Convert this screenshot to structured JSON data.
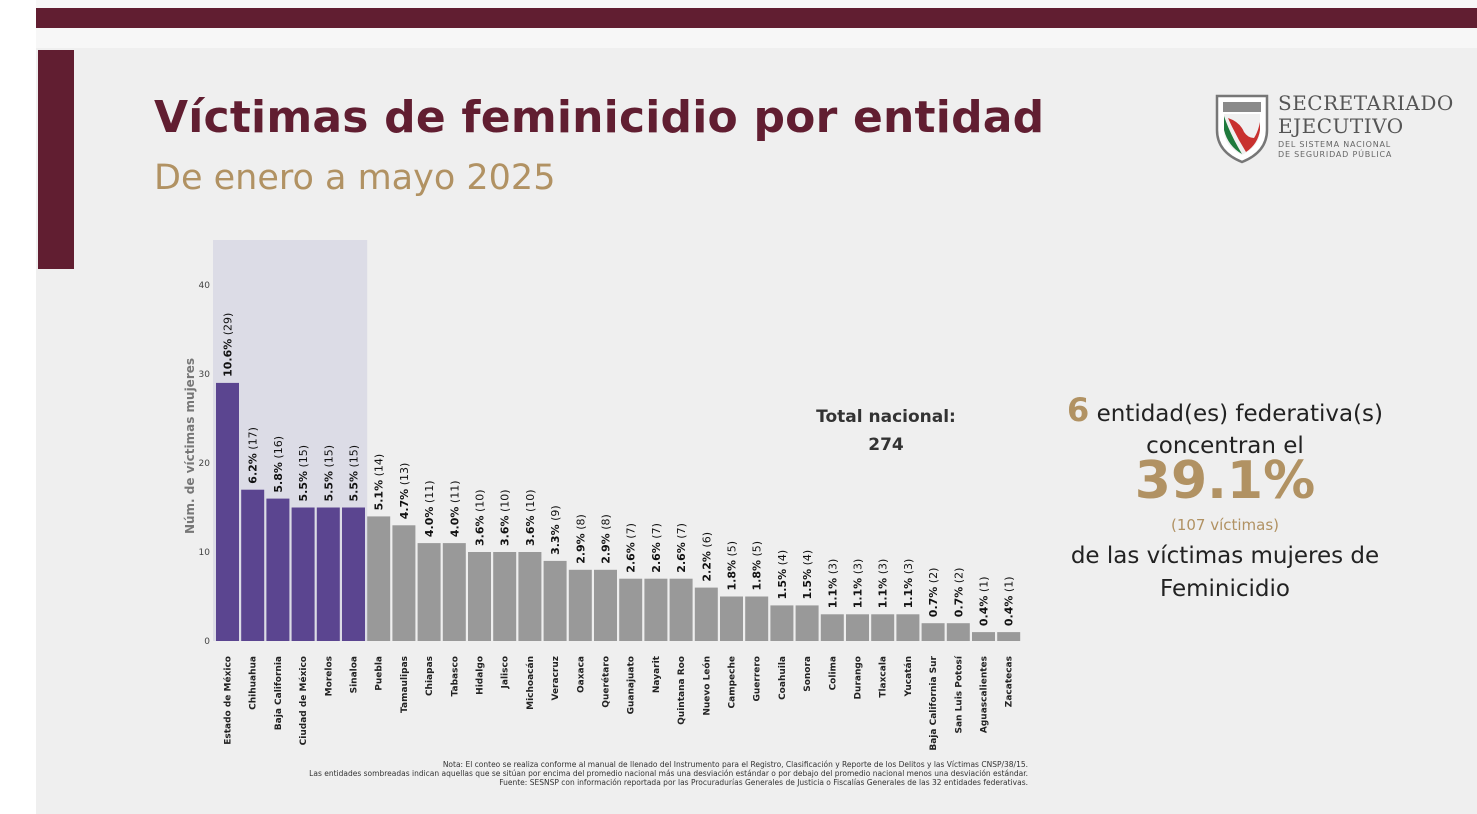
{
  "header": {
    "title": "Víctimas de feminicidio por entidad",
    "subtitle": "De enero a mayo 2025"
  },
  "logo": {
    "line1": "SECRETARIADO",
    "line2": "EJECUTIVO",
    "line3": "DEL SISTEMA NACIONAL",
    "line4": "DE SEGURIDAD PÚBLICA"
  },
  "total": {
    "label": "Total nacional:",
    "value": "274"
  },
  "stat": {
    "count": "6",
    "line1_rest": " entidad(es) federativa(s)",
    "line2": "concentran el",
    "percent": "39.1%",
    "victims": "(107 víctimas)",
    "line3": "de las víctimas mujeres de",
    "line4": "Feminicidio"
  },
  "notes": [
    "Nota: El conteo se realiza conforme al manual de llenado del Instrumento para el Registro, Clasificación y Reporte de los Delitos y las Víctimas CNSP/38/15.",
    "Las entidades sombreadas indican aquellas que se sitúan por encima del promedio nacional más una desviación estándar o por debajo del promedio nacional menos una desviación estándar.",
    "Fuente: SESNSP con información reportada por las Procuradurías Generales de Justicia o Fiscalías Generales de las 32 entidades federativas."
  ],
  "colors": {
    "highlight": "#5b4590",
    "normal": "#999999",
    "shade": "#dcdce6",
    "brand": "#611e31",
    "gold": "#b19263"
  },
  "chart_data": {
    "type": "bar",
    "title": "Víctimas de feminicidio por entidad",
    "xlabel": "",
    "ylabel": "Núm. de víctimas mujeres",
    "ylim": [
      0,
      45
    ],
    "yticks": [
      "0",
      "10",
      "20",
      "30",
      "40"
    ],
    "grid": false,
    "categories": [
      "Estado de México",
      "Chihuahua",
      "Baja California",
      "Ciudad de México",
      "Morelos",
      "Sinaloa",
      "Puebla",
      "Tamaulipas",
      "Chiapas",
      "Tabasco",
      "Hidalgo",
      "Jalisco",
      "Michoacán",
      "Veracruz",
      "Oaxaca",
      "Querétaro",
      "Guanajuato",
      "Nayarit",
      "Quintana Roo",
      "Nuevo León",
      "Campeche",
      "Guerrero",
      "Coahuila",
      "Sonora",
      "Colima",
      "Durango",
      "Tlaxcala",
      "Yucatán",
      "Baja California Sur",
      "San Luis Potosí",
      "Aguascalientes",
      "Zacatecas"
    ],
    "values": [
      29,
      17,
      16,
      15,
      15,
      15,
      14,
      13,
      11,
      11,
      10,
      10,
      10,
      9,
      8,
      8,
      7,
      7,
      7,
      6,
      5,
      5,
      4,
      4,
      3,
      3,
      3,
      3,
      2,
      2,
      1,
      1
    ],
    "percent_labels": [
      "10.6%",
      "6.2%",
      "5.8%",
      "5.5%",
      "5.5%",
      "5.5%",
      "5.1%",
      "4.7%",
      "4.0%",
      "4.0%",
      "3.6%",
      "3.6%",
      "3.6%",
      "3.3%",
      "2.9%",
      "2.9%",
      "2.6%",
      "2.6%",
      "2.6%",
      "2.2%",
      "1.8%",
      "1.8%",
      "1.5%",
      "1.5%",
      "1.1%",
      "1.1%",
      "1.1%",
      "1.1%",
      "0.7%",
      "0.7%",
      "0.4%",
      "0.4%"
    ],
    "count_labels": [
      "(29)",
      "(17)",
      "(16)",
      "(15)",
      "(15)",
      "(15)",
      "(14)",
      "(13)",
      "(11)",
      "(11)",
      "(10)",
      "(10)",
      "(10)",
      "(9)",
      "(8)",
      "(8)",
      "(7)",
      "(7)",
      "(7)",
      "(6)",
      "(5)",
      "(5)",
      "(4)",
      "(4)",
      "(3)",
      "(3)",
      "(3)",
      "(3)",
      "(2)",
      "(2)",
      "(1)",
      "(1)"
    ],
    "highlighted_count": 6
  }
}
